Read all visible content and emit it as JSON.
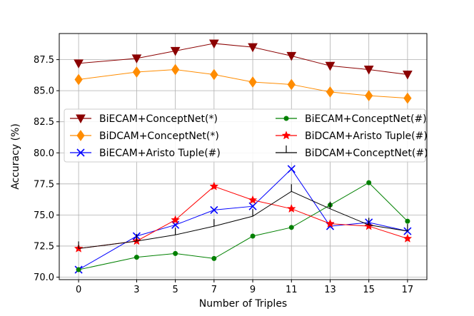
{
  "chart_data": {
    "type": "line",
    "title": "",
    "xlabel": "Number of Triples",
    "ylabel": "Accuracy (%)",
    "x": [
      0,
      3,
      5,
      7,
      9,
      11,
      13,
      15,
      17
    ],
    "xticks": [
      "0",
      "3",
      "5",
      "7",
      "9",
      "11",
      "13",
      "15",
      "17"
    ],
    "yticks": [
      "70.0",
      "72.5",
      "75.0",
      "77.5",
      "80.0",
      "82.5",
      "85.0",
      "87.5"
    ],
    "xlim": [
      -1,
      18
    ],
    "ylim": [
      69.8,
      89.6
    ],
    "grid": true,
    "legend_position": "center",
    "series": [
      {
        "name": "BiECAM+ConceptNet(*)",
        "color": "#8b0000",
        "marker": "triangle-down",
        "values": [
          87.2,
          87.6,
          88.2,
          88.8,
          88.5,
          87.8,
          87.0,
          86.7,
          86.3
        ]
      },
      {
        "name": "BiDCAM+ConceptNet(*)",
        "color": "#ff8c00",
        "marker": "diamond",
        "values": [
          85.9,
          86.5,
          86.7,
          86.3,
          85.7,
          85.5,
          84.9,
          84.6,
          84.4
        ]
      },
      {
        "name": "BiECAM+Aristo Tuple(#)",
        "color": "#0000ff",
        "marker": "x",
        "values": [
          70.6,
          73.3,
          74.2,
          75.4,
          75.7,
          78.7,
          74.1,
          74.4,
          73.7
        ]
      },
      {
        "name": "BiECAM+ConceptNet(#)",
        "color": "#008000",
        "marker": "circle",
        "values": [
          70.6,
          71.6,
          71.9,
          71.5,
          73.3,
          74.0,
          75.8,
          77.6,
          74.5
        ]
      },
      {
        "name": "BiDCAM+Aristo Tuple(#)",
        "color": "#ff0000",
        "marker": "star",
        "values": [
          72.3,
          72.9,
          74.6,
          77.3,
          76.2,
          75.5,
          74.3,
          74.1,
          73.1
        ]
      },
      {
        "name": "BiDCAM+ConceptNet(#)",
        "color": "#000000",
        "marker": "tick-up",
        "values": [
          72.3,
          72.9,
          73.4,
          74.1,
          74.9,
          76.9,
          75.5,
          74.2,
          73.7
        ]
      }
    ]
  }
}
